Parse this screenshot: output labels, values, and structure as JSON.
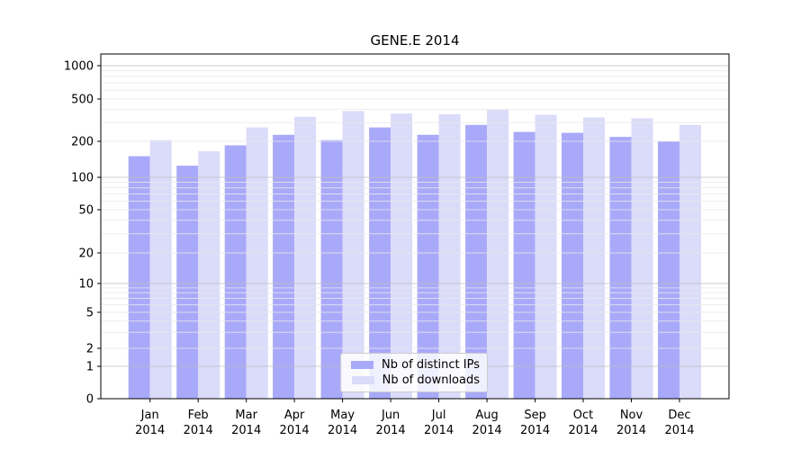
{
  "title": "GENE.E 2014",
  "chart_data": {
    "type": "bar",
    "title": "GENE.E 2014",
    "categories": [
      "Jan 2014",
      "Feb 2014",
      "Mar 2014",
      "Apr 2014",
      "May 2014",
      "Jun 2014",
      "Jul 2014",
      "Aug 2014",
      "Sep 2014",
      "Oct 2014",
      "Nov 2014",
      "Dec 2014"
    ],
    "series": [
      {
        "name": "Nb of distinct IPs",
        "color": "#a9a9fa",
        "values": [
          150,
          125,
          185,
          230,
          205,
          270,
          230,
          285,
          245,
          240,
          220,
          200
        ]
      },
      {
        "name": "Nb of downloads",
        "color": "#dbdbfa",
        "values": [
          205,
          165,
          270,
          340,
          385,
          365,
          360,
          395,
          355,
          335,
          330,
          285
        ]
      }
    ],
    "xlabel": "",
    "ylabel": "",
    "yscale": "symlog",
    "y_ticks": [
      0,
      1,
      2,
      5,
      10,
      20,
      50,
      100,
      200,
      500,
      1000
    ],
    "ylim": [
      0,
      1200
    ],
    "grid": true,
    "legend_position": "lower-center"
  },
  "colors": {
    "major_grid": "#bcbcbc",
    "minor_grid": "#e9e9e9",
    "spine": "#000000"
  }
}
